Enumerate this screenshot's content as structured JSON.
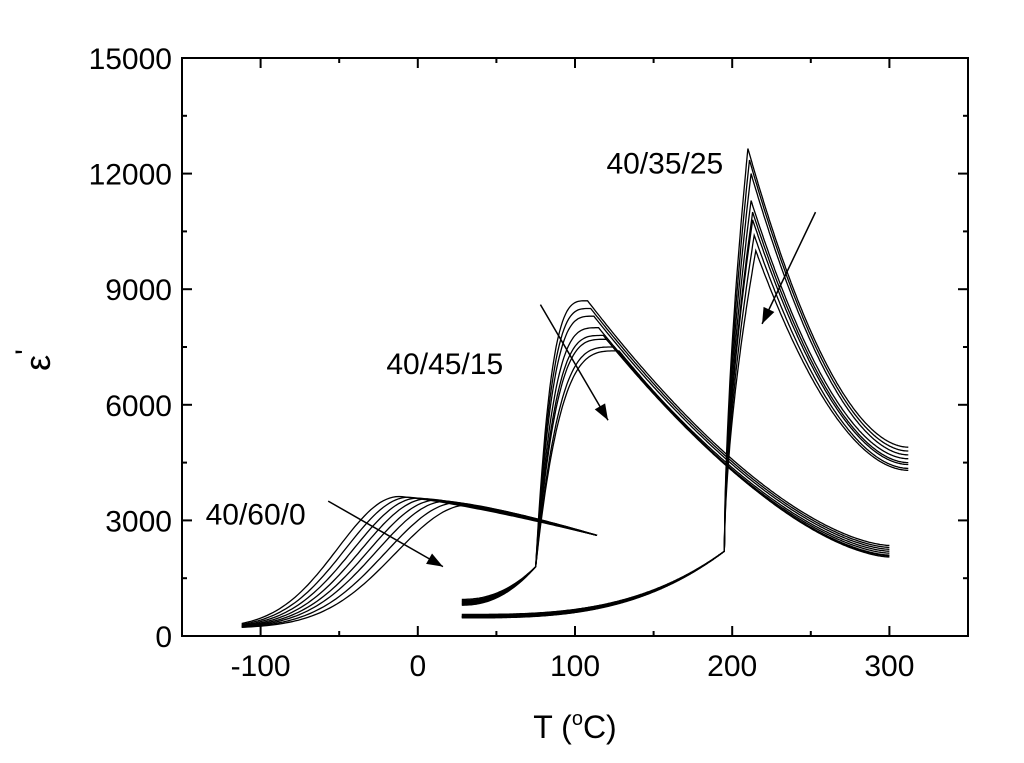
{
  "chart_data": {
    "type": "line",
    "title": "",
    "xlabel": "T (oC)",
    "xlabel_main": "T (",
    "xlabel_sup": "o",
    "xlabel_unit": "C)",
    "ylabel": "ε'",
    "ylabel_symbol": "ε",
    "ylabel_prime": "'",
    "xlim": [
      -150,
      350
    ],
    "ylim": [
      0,
      15000
    ],
    "xticks": [
      -100,
      0,
      100,
      200,
      300
    ],
    "xtick_labels": [
      "-100",
      "0",
      "100",
      "200",
      "300"
    ],
    "x_minor_step": 50,
    "yticks": [
      0,
      3000,
      6000,
      9000,
      12000,
      15000
    ],
    "ytick_labels": [
      "0",
      "3000",
      "6000",
      "9000",
      "12000",
      "15000"
    ],
    "y_minor_step": 1500,
    "grid": false,
    "groups": [
      {
        "name": "40/60/0",
        "curves": 8,
        "x_range": [
          -112,
          115
        ],
        "peak_T": [
          -12,
          -6,
          0,
          6,
          12,
          18,
          25,
          32
        ],
        "peak_eps": [
          3620,
          3600,
          3580,
          3560,
          3530,
          3500,
          3460,
          3400
        ],
        "start_eps": [
          950,
          900,
          850,
          800,
          750,
          720,
          690,
          650
        ],
        "end_eps": 2600
      },
      {
        "name": "40/45/15",
        "curves": 8,
        "x_range": [
          28,
          300
        ],
        "transition_T": 77,
        "peak_T": [
          108,
          110,
          112,
          115,
          118,
          120,
          125,
          128
        ],
        "peak_eps": [
          8700,
          8500,
          8300,
          8000,
          7800,
          7700,
          7500,
          7400
        ],
        "start_eps": [
          950,
          920,
          900,
          880,
          860,
          840,
          820,
          800
        ],
        "end_eps": [
          2350,
          2300,
          2250,
          2200,
          2150,
          2100,
          2080,
          2050
        ]
      },
      {
        "name": "40/35/25",
        "curves": 8,
        "x_range": [
          28,
          312
        ],
        "transition_T": 200,
        "peak_T": [
          210,
          211,
          212,
          212,
          213,
          213,
          214,
          215
        ],
        "peak_eps": [
          12650,
          12350,
          12000,
          11300,
          11000,
          10800,
          10400,
          10000
        ],
        "start_eps": [
          560,
          540,
          520,
          510,
          500,
          490,
          480,
          470
        ],
        "end_eps": [
          4900,
          4800,
          4700,
          4600,
          4500,
          4450,
          4350,
          4300
        ]
      }
    ],
    "annotations": [
      {
        "text": "40/60/0",
        "x": -135,
        "y": 2900
      },
      {
        "text": "40/45/15",
        "x": -20,
        "y": 6800
      },
      {
        "text": "40/35/25",
        "x": 120,
        "y": 12000
      }
    ],
    "arrows": [
      {
        "from": [
          -57,
          3500
        ],
        "to": [
          16,
          1800
        ]
      },
      {
        "from": [
          78,
          8600
        ],
        "to": [
          121,
          5600
        ]
      },
      {
        "from": [
          253,
          11000
        ],
        "to": [
          219,
          8100
        ]
      }
    ]
  }
}
